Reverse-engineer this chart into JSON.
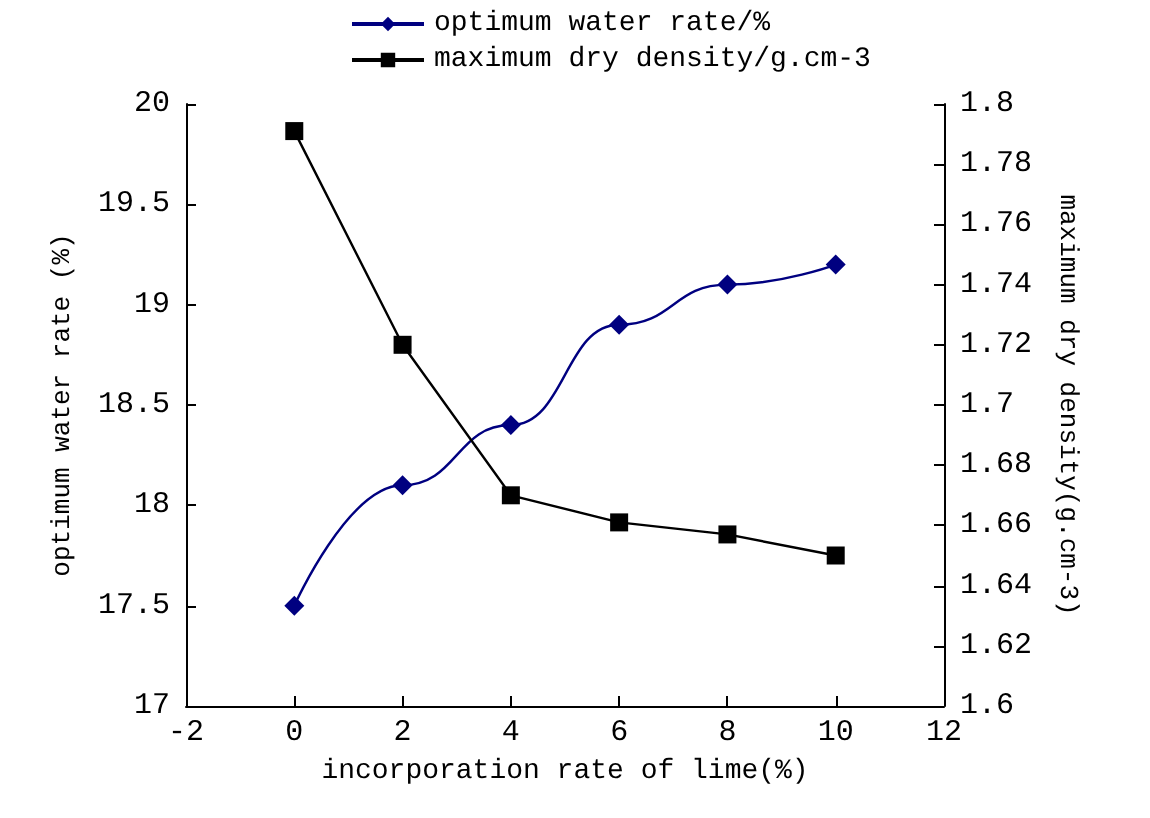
{
  "chart_data": {
    "type": "line",
    "xlabel": "incorporation rate of lime(%)",
    "ylabel": "optimum water rate (%)",
    "y2label": "maximum dry density(g.cm-3)",
    "x": [
      0,
      2,
      4,
      6,
      8,
      10
    ],
    "xlim": [
      -2,
      12
    ],
    "xticks": [
      -2,
      0,
      2,
      4,
      6,
      8,
      10,
      12
    ],
    "ylim": [
      17,
      20
    ],
    "yticks": [
      17,
      17.5,
      18,
      18.5,
      19,
      19.5,
      20
    ],
    "y2lim": [
      1.6,
      1.8
    ],
    "y2ticks": [
      1.6,
      1.62,
      1.64,
      1.66,
      1.68,
      1.7,
      1.72,
      1.74,
      1.76,
      1.78,
      1.8
    ],
    "legend": "top",
    "grid": false,
    "series": [
      {
        "name": "optimum water rate/%",
        "color": "#000080",
        "marker": "diamond",
        "values": [
          17.5,
          18.1,
          18.4,
          18.9,
          19.1,
          19.2
        ]
      },
      {
        "name": "maximum dry density/g.cm-3",
        "color": "#000000",
        "marker": "square",
        "axis": "y2",
        "values": [
          1.791,
          1.72,
          1.67,
          1.661,
          1.657,
          1.65
        ]
      }
    ]
  }
}
